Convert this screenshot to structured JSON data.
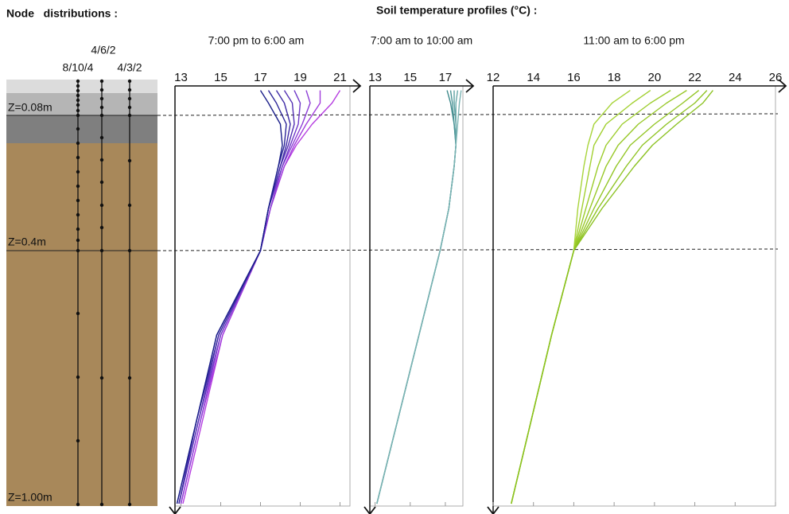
{
  "header": {
    "node_title": "Node   distributions :",
    "profiles_title": "Soil temperature profiles (°C) :"
  },
  "node_diagram": {
    "columns": [
      "8/10/4",
      "4/6/2",
      "4/3/2"
    ],
    "depth_labels": [
      "Z=0.08m",
      "Z=0.4m",
      "Z=1.00m"
    ]
  },
  "chart_data": [
    {
      "type": "line",
      "title": "7:00 pm to 6:00 am",
      "xlim": [
        12.7,
        21.5
      ],
      "xticks": [
        13,
        15,
        17,
        19,
        21
      ],
      "ylim": [
        0,
        1
      ],
      "depth": [
        0.02,
        0.05,
        0.1,
        0.15,
        0.2,
        0.3,
        0.4,
        0.6,
        0.8,
        1.0
      ],
      "series": [
        {
          "color": "#b53de0",
          "values": [
            21.0,
            20.6,
            19.6,
            18.8,
            18.2,
            17.5,
            17.0,
            15.1,
            14.1,
            13.1
          ]
        },
        {
          "color": "#a23ddc",
          "values": [
            20.0,
            20.0,
            19.3,
            18.7,
            18.2,
            17.5,
            17.0,
            15.1,
            14.0,
            13.0
          ]
        },
        {
          "color": "#8c3dd6",
          "values": [
            19.3,
            19.5,
            19.1,
            18.6,
            18.1,
            17.5,
            17.0,
            15.0,
            14.0,
            13.0
          ]
        },
        {
          "color": "#6f39c8",
          "values": [
            18.7,
            19.0,
            18.9,
            18.5,
            18.1,
            17.4,
            17.0,
            15.0,
            13.9,
            12.9
          ]
        },
        {
          "color": "#5533b4",
          "values": [
            18.2,
            18.6,
            18.7,
            18.4,
            18.0,
            17.4,
            17.0,
            14.9,
            13.9,
            12.9
          ]
        },
        {
          "color": "#3f2ca6",
          "values": [
            17.8,
            18.2,
            18.5,
            18.3,
            18.0,
            17.4,
            17.0,
            14.9,
            13.8,
            12.9
          ]
        },
        {
          "color": "#2c2598",
          "values": [
            17.4,
            17.8,
            18.3,
            18.2,
            17.9,
            17.4,
            17.0,
            14.8,
            13.8,
            12.8
          ]
        },
        {
          "color": "#1b1f8a",
          "values": [
            17.0,
            17.4,
            18.0,
            18.1,
            17.9,
            17.4,
            17.0,
            14.8,
            13.8,
            12.8
          ]
        }
      ]
    },
    {
      "type": "line",
      "title": "7:00 am to 10:00 am",
      "xlim": [
        12.7,
        18.0
      ],
      "xticks": [
        13,
        15,
        17
      ],
      "ylim": [
        0,
        1
      ],
      "depth": [
        0.02,
        0.05,
        0.1,
        0.15,
        0.2,
        0.3,
        0.4,
        0.6,
        0.8,
        1.0
      ],
      "series": [
        {
          "color": "#3f8a8c",
          "values": [
            17.1,
            17.3,
            17.5,
            17.6,
            17.5,
            17.2,
            16.7,
            15.5,
            14.3,
            13.1
          ]
        },
        {
          "color": "#4a9496",
          "values": [
            17.3,
            17.4,
            17.5,
            17.6,
            17.5,
            17.2,
            16.7,
            15.5,
            14.3,
            13.1
          ]
        },
        {
          "color": "#5a9fa0",
          "values": [
            17.5,
            17.5,
            17.6,
            17.6,
            17.5,
            17.2,
            16.7,
            15.5,
            14.3,
            13.1
          ]
        },
        {
          "color": "#6aa9aa",
          "values": [
            17.7,
            17.6,
            17.6,
            17.6,
            17.5,
            17.2,
            16.7,
            15.5,
            14.3,
            13.1
          ]
        },
        {
          "color": "#7ab3b3",
          "values": [
            17.9,
            17.8,
            17.7,
            17.6,
            17.5,
            17.2,
            16.7,
            15.5,
            14.3,
            13.1
          ]
        }
      ]
    },
    {
      "type": "line",
      "title": "11:00 am to 6:00 pm",
      "xlim": [
        12,
        26
      ],
      "xticks": [
        12,
        14,
        16,
        18,
        20,
        22,
        24,
        26
      ],
      "ylim": [
        0,
        1
      ],
      "depth": [
        0.02,
        0.05,
        0.1,
        0.15,
        0.2,
        0.3,
        0.4,
        0.6,
        0.8,
        1.0
      ],
      "series": [
        {
          "color": "#a8d43a",
          "values": [
            18.8,
            17.9,
            17.0,
            16.7,
            16.5,
            16.2,
            16.0,
            14.9,
            13.9,
            12.9
          ]
        },
        {
          "color": "#a2d030",
          "values": [
            19.8,
            18.9,
            17.6,
            17.0,
            16.8,
            16.4,
            16.0,
            14.9,
            13.9,
            12.9
          ]
        },
        {
          "color": "#9ccc2c",
          "values": [
            20.8,
            19.8,
            18.4,
            17.6,
            17.2,
            16.6,
            16.0,
            14.9,
            13.9,
            12.9
          ]
        },
        {
          "color": "#98c828",
          "values": [
            21.6,
            20.6,
            19.2,
            18.2,
            17.6,
            16.8,
            16.0,
            14.9,
            13.9,
            12.9
          ]
        },
        {
          "color": "#94c626",
          "values": [
            22.2,
            21.4,
            20.0,
            18.8,
            18.1,
            17.0,
            16.0,
            14.9,
            13.9,
            12.9
          ]
        },
        {
          "color": "#90c424",
          "values": [
            22.6,
            22.0,
            20.6,
            19.4,
            18.6,
            17.2,
            16.0,
            14.9,
            13.9,
            12.9
          ]
        },
        {
          "color": "#8cc222",
          "values": [
            22.9,
            22.4,
            21.1,
            19.9,
            19.0,
            17.4,
            16.0,
            14.9,
            13.9,
            12.9
          ]
        }
      ]
    }
  ]
}
